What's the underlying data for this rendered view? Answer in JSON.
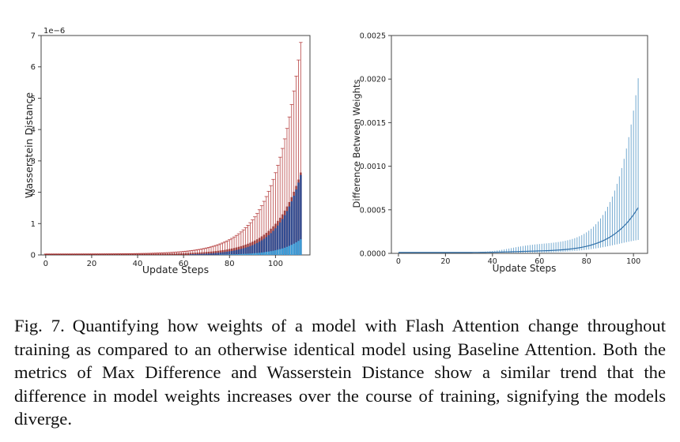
{
  "chart_data": [
    {
      "type": "bar",
      "title": "",
      "xlabel": "Update Steps",
      "ylabel": "Wasserstein Distance",
      "scale_label": "1e−6",
      "xlim": [
        -2,
        115
      ],
      "ylim": [
        0,
        7
      ],
      "xticks": [
        0,
        20,
        40,
        60,
        80,
        100
      ],
      "yticks": [
        0,
        1,
        2,
        3,
        4,
        5,
        6,
        7
      ],
      "n_steps": 112,
      "series": [
        {
          "name": "upper error",
          "color": "#b03030",
          "growth_k": 0.085,
          "end_value": 6.75
        },
        {
          "name": "red bars",
          "color": "#8b1a1a",
          "growth_k": 0.09,
          "end_value": 2.6
        },
        {
          "name": "blue bars",
          "color": "#1f4fa0",
          "growth_k": 0.1,
          "end_value": 2.55
        },
        {
          "name": "light blue bars",
          "color": "#3ea6e0",
          "growth_k": 0.11,
          "end_value": 0.5
        }
      ]
    },
    {
      "type": "line",
      "title": "",
      "xlabel": "Update Steps",
      "ylabel": "Difference Between Weights",
      "xlim": [
        -3,
        106
      ],
      "ylim": [
        0,
        0.0025
      ],
      "xticks": [
        0,
        20,
        40,
        60,
        80,
        100
      ],
      "yticks": [
        0,
        0.0005,
        0.001,
        0.0015,
        0.002,
        0.0025
      ],
      "ytick_labels": [
        "0.0000",
        "0.0005",
        "0.0010",
        "0.0015",
        "0.0020",
        "0.0025"
      ],
      "n_steps": 103,
      "color": "#5b9bc8",
      "mean_end": 0.0005,
      "max_end": 0.002,
      "plateau": 0.0001
    }
  ],
  "caption": {
    "label": "Fig. 7.",
    "text": "Quantifying how weights of a model with Flash Attention change throughout training as compared to an otherwise identical model using Baseline Attention. Both the metrics of Max Difference and Wasserstein Distance show a similar trend that the difference in model weights increases over the course of training, signifying the models diverge."
  }
}
